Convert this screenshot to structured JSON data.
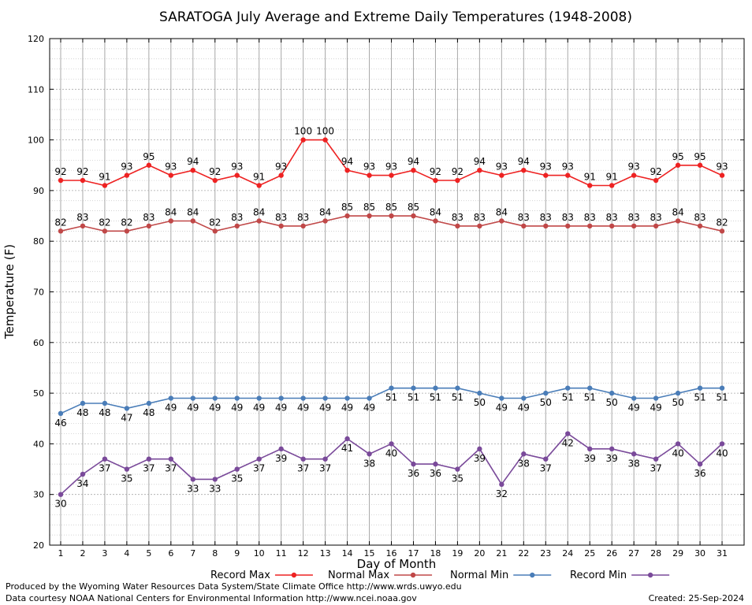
{
  "chart_data": {
    "type": "line",
    "title": "SARATOGA July Average and Extreme Daily Temperatures (1948-2008)",
    "xlabel": "Day of Month",
    "ylabel": "Temperature (F)",
    "ylim": [
      20,
      120
    ],
    "yticks": [
      20,
      30,
      40,
      50,
      60,
      70,
      80,
      90,
      100,
      110,
      120
    ],
    "categories": [
      1,
      2,
      3,
      4,
      5,
      6,
      7,
      8,
      9,
      10,
      11,
      12,
      13,
      14,
      15,
      16,
      17,
      18,
      19,
      20,
      21,
      22,
      23,
      24,
      25,
      26,
      27,
      28,
      29,
      30,
      31
    ],
    "grid": true,
    "legend_position": "bottom",
    "series": [
      {
        "name": "Record Max",
        "color": "#ee2222",
        "label_position": "above",
        "values": [
          92,
          92,
          91,
          93,
          95,
          93,
          94,
          92,
          93,
          91,
          93,
          100,
          100,
          94,
          93,
          93,
          94,
          92,
          92,
          94,
          93,
          94,
          93,
          93,
          91,
          91,
          93,
          92,
          95,
          95,
          93
        ]
      },
      {
        "name": "Normal Max",
        "color": "#c04848",
        "label_position": "above",
        "values": [
          82,
          83,
          82,
          82,
          83,
          84,
          84,
          82,
          83,
          84,
          83,
          83,
          84,
          85,
          85,
          85,
          85,
          84,
          83,
          83,
          84,
          83,
          83,
          83,
          83,
          83,
          83,
          83,
          84,
          83,
          82
        ]
      },
      {
        "name": "Normal Min",
        "color": "#4a7db8",
        "label_position": "below",
        "values": [
          46,
          48,
          48,
          47,
          48,
          49,
          49,
          49,
          49,
          49,
          49,
          49,
          49,
          49,
          49,
          51,
          51,
          51,
          51,
          50,
          49,
          49,
          50,
          51,
          51,
          50,
          49,
          49,
          50,
          51,
          51
        ]
      },
      {
        "name": "Record Min",
        "color": "#7a4a9a",
        "label_position": "below",
        "values": [
          30,
          34,
          37,
          35,
          37,
          37,
          33,
          33,
          35,
          37,
          39,
          37,
          37,
          41,
          38,
          40,
          36,
          36,
          35,
          39,
          32,
          38,
          37,
          42,
          39,
          39,
          38,
          37,
          40,
          36,
          40
        ]
      }
    ]
  },
  "footer": {
    "line1": "Produced by the Wyoming Water Resources Data System/State Climate Office http://www.wrds.uwyo.edu",
    "line2": "Data courtesy NOAA National Centers for Environmental Information http://www.ncei.noaa.gov",
    "created": "Created:  25-Sep-2024"
  }
}
